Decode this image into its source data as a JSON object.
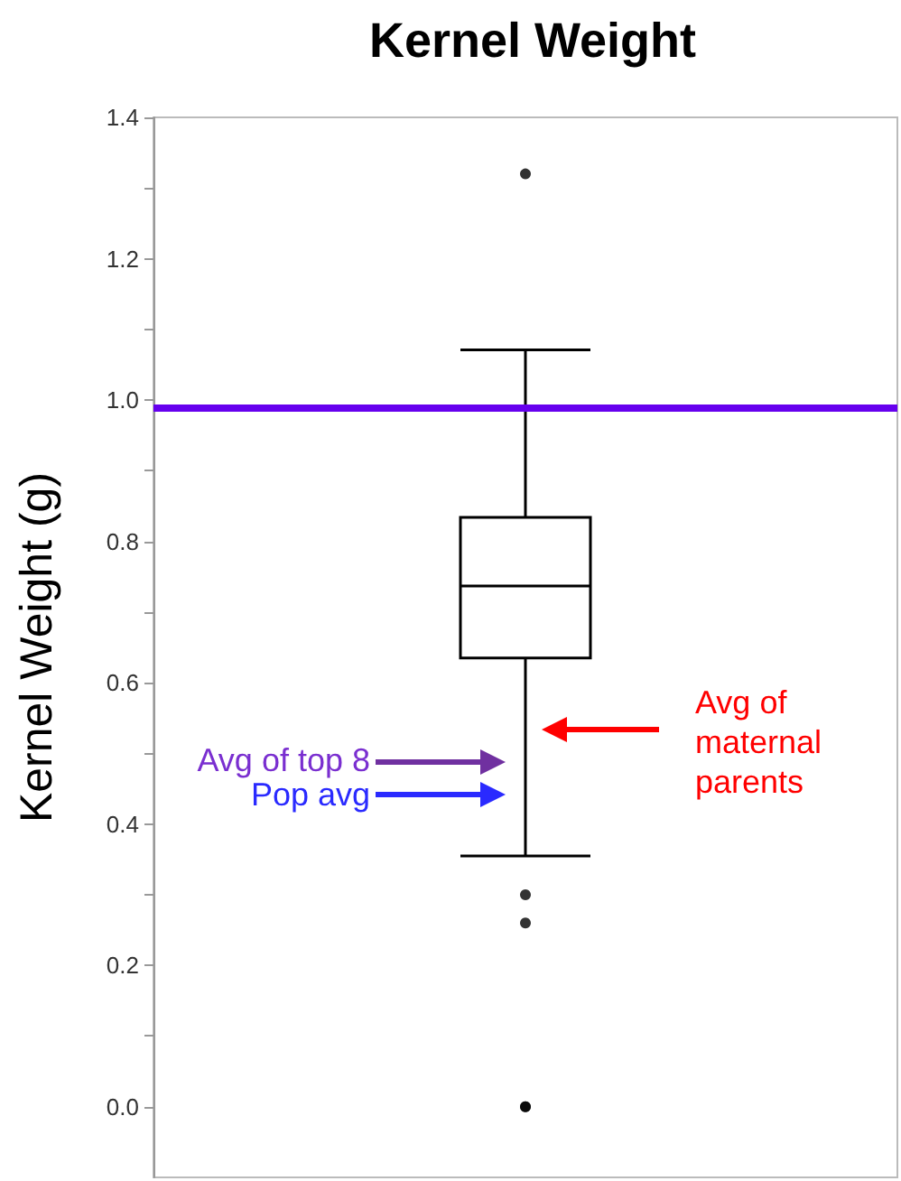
{
  "chart_data": {
    "type": "box",
    "title": "Kernel Weight",
    "ylabel": "Kernel Weight (g)",
    "categories": [
      null
    ],
    "boxes": [
      {
        "low": 0.355,
        "q1": 0.635,
        "median": 0.737,
        "q3": 0.834,
        "high": 1.071,
        "outliers": [
          1.32,
          0.3,
          0.26,
          0,
          0
        ]
      }
    ],
    "color": "#000000",
    "ylim": [
      -0.1,
      1.4
    ],
    "yticks": [
      {
        "value": 0,
        "label": "0.0"
      },
      {
        "value": 0.1,
        "label": null
      },
      {
        "value": 0.2,
        "label": "0.2"
      },
      {
        "value": 0.3,
        "label": null
      },
      {
        "value": 0.4,
        "label": "0.4"
      },
      {
        "value": 0.5,
        "label": null
      },
      {
        "value": 0.6,
        "label": "0.6"
      },
      {
        "value": 0.7,
        "label": null
      },
      {
        "value": 0.8,
        "label": "0.8"
      },
      {
        "value": 0.9,
        "label": null
      },
      {
        "value": 1,
        "label": "1.0"
      },
      {
        "value": 1.1,
        "label": null
      },
      {
        "value": 1.2,
        "label": "1.2"
      },
      {
        "value": 1.3,
        "label": null
      },
      {
        "value": 1.4,
        "label": "1.4"
      }
    ],
    "ref_lines": [
      {
        "axis": "y",
        "value": 0.99,
        "color": "#6600ee"
      }
    ],
    "annotations": [
      "Avg of top 8",
      "Pop avg",
      "Avg of maternal parents"
    ],
    "grid": false
  }
}
